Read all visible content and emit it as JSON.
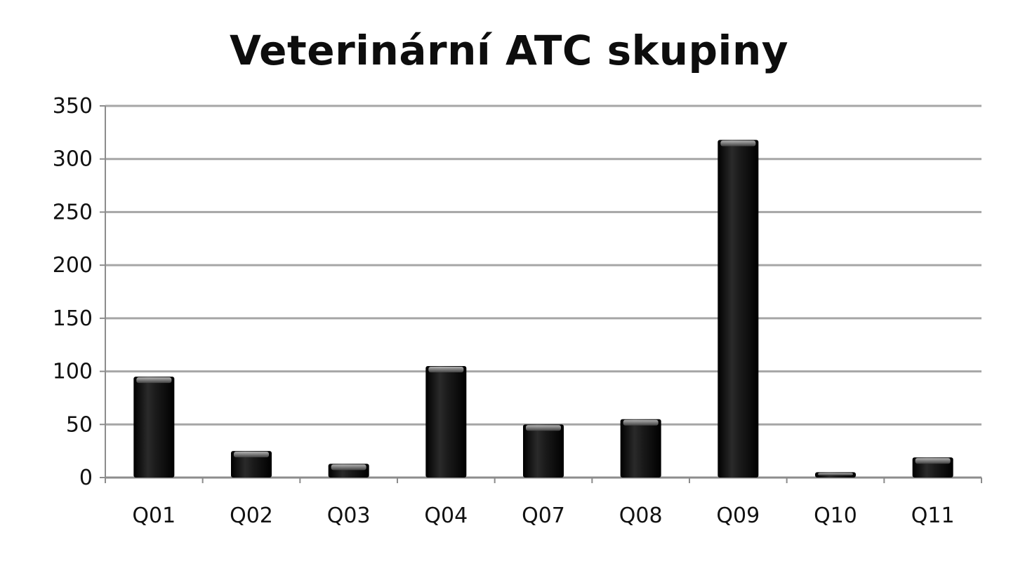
{
  "chart_data": {
    "type": "bar",
    "title": "Veterinární ATC skupiny",
    "xlabel": "",
    "ylabel": "",
    "categories": [
      "Q01",
      "Q02",
      "Q03",
      "Q04",
      "Q07",
      "Q08",
      "Q09",
      "Q10",
      "Q11"
    ],
    "values": [
      95,
      25,
      13,
      105,
      50,
      55,
      318,
      5,
      19
    ],
    "ylim": [
      0,
      350
    ],
    "yticks": [
      0,
      50,
      100,
      150,
      200,
      250,
      300,
      350
    ],
    "grid": true,
    "legend": "none",
    "colors": {
      "bar": "#0a0a0a",
      "bar_highlight": "#9a9a9a",
      "grid": "#a6a6a6",
      "axis": "#8c8c8c"
    }
  }
}
